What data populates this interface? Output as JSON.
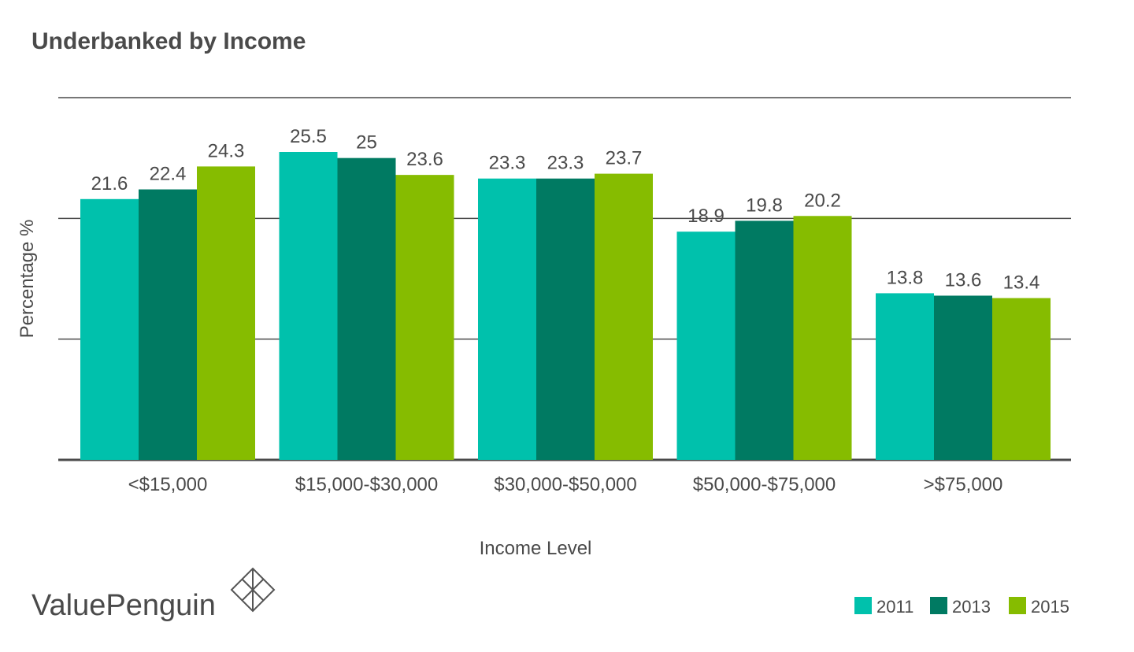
{
  "brand": {
    "name": "ValuePenguin",
    "logo_color": "#555555"
  },
  "chart_data": {
    "type": "bar",
    "title": "Underbanked by Income",
    "xlabel": "Income Level",
    "ylabel": "Percentage %",
    "ylim": [
      0,
      30
    ],
    "gridlines": [
      10,
      20,
      30
    ],
    "grid": true,
    "legend_position": "bottom-right",
    "categories": [
      "<$15,000",
      "$15,000-$30,000",
      "$30,000-$50,000",
      "$50,000-$75,000",
      ">$75,000"
    ],
    "series": [
      {
        "name": "2011",
        "color": "#00c1ac",
        "values": [
          21.6,
          25.5,
          23.3,
          18.9,
          13.8
        ],
        "labels": [
          "21.6",
          "25.5",
          "23.3",
          "18.9",
          "13.8"
        ]
      },
      {
        "name": "2013",
        "color": "#007a62",
        "values": [
          22.4,
          25,
          23.3,
          19.8,
          13.6
        ],
        "labels": [
          "22.4",
          "25",
          "23.3",
          "19.8",
          "13.6"
        ]
      },
      {
        "name": "2015",
        "color": "#86bc00",
        "values": [
          24.3,
          23.6,
          23.7,
          20.2,
          13.4
        ],
        "labels": [
          "24.3",
          "23.6",
          "23.7",
          "20.2",
          "13.4"
        ]
      }
    ]
  }
}
